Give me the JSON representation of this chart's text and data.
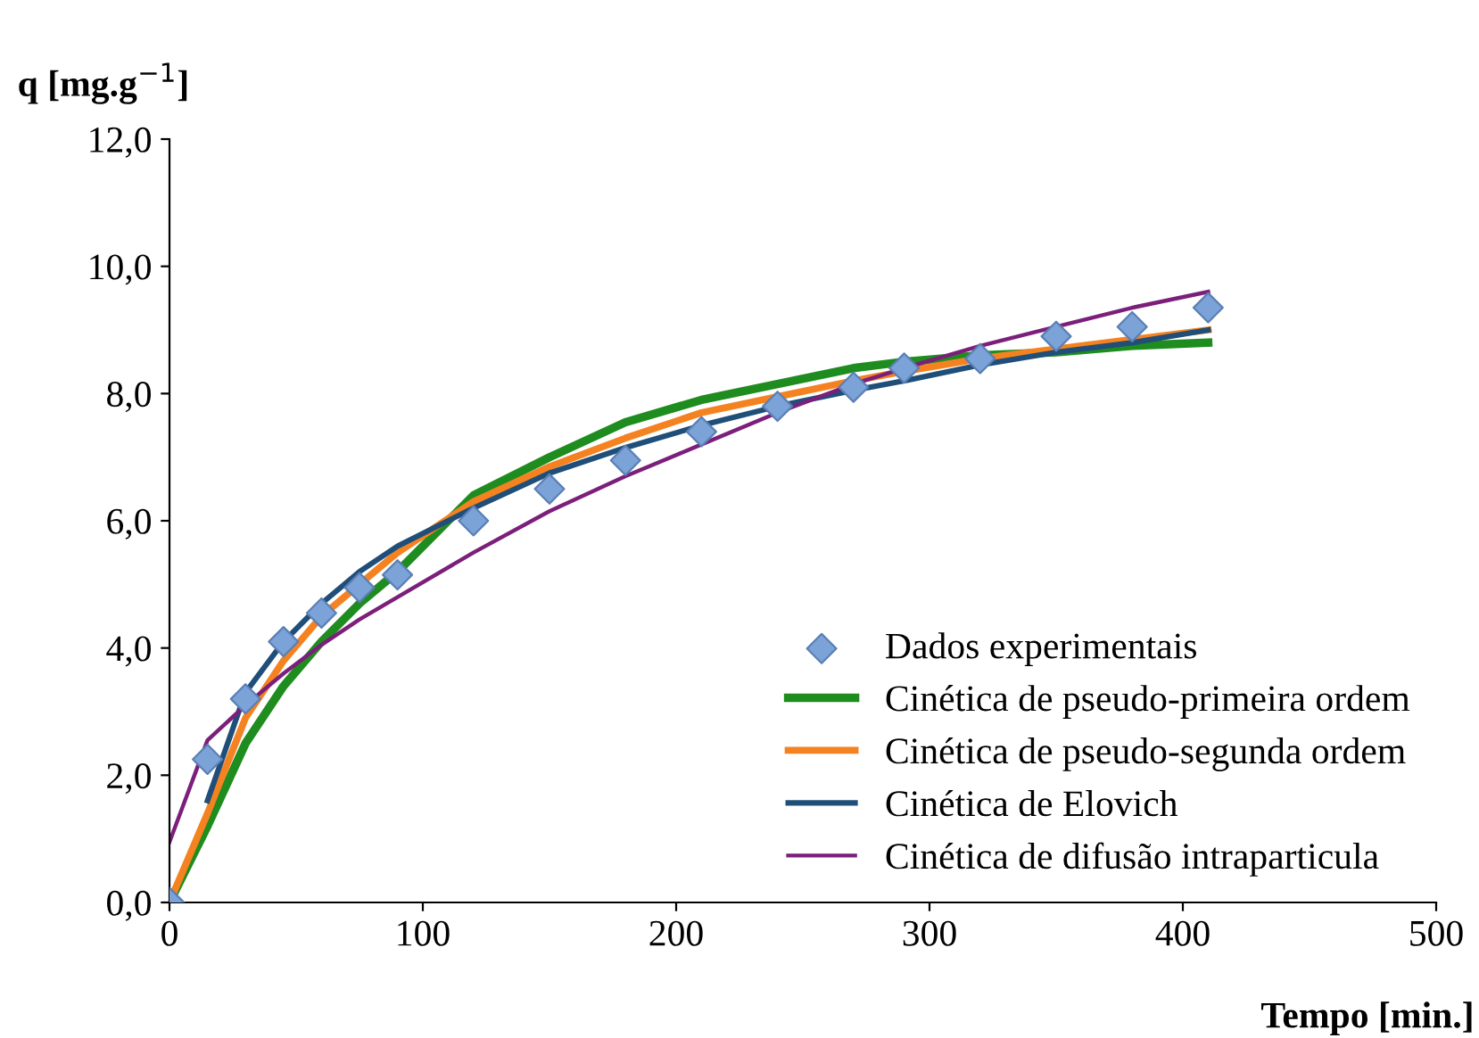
{
  "chart_data": {
    "type": "line",
    "xlabel": "Tempo [min.]",
    "ylabel": "q [mg.g$^{−1}$]",
    "xlim": [
      0,
      500
    ],
    "xticks": [
      0,
      100,
      200,
      300,
      400,
      500
    ],
    "ylim": [
      0,
      12
    ],
    "yticks": [
      {
        "value": 0,
        "label": "0,0"
      },
      {
        "value": 2,
        "label": "2,0"
      },
      {
        "value": 4,
        "label": "4,0"
      },
      {
        "value": 6,
        "label": "6,0"
      },
      {
        "value": 8,
        "label": "8,0"
      },
      {
        "value": 10,
        "label": "10,0"
      },
      {
        "value": 12,
        "label": "12,0"
      }
    ],
    "grid": false,
    "legend": "bottom right",
    "series": [
      {
        "name": "Dados experimentais",
        "type": "scatter",
        "marker": "diamond",
        "color": "#7ba3d8",
        "x": [
          0,
          15,
          30,
          45,
          60,
          75,
          90,
          120,
          150,
          180,
          210,
          240,
          270,
          290,
          320,
          350,
          380,
          410
        ],
        "values": [
          0,
          2.25,
          3.2,
          4.1,
          4.55,
          4.95,
          5.15,
          6.0,
          6.5,
          6.95,
          7.4,
          7.8,
          8.1,
          8.4,
          8.55,
          8.9,
          9.05,
          9.35
        ]
      },
      {
        "name": "Cinética de pseudo-primeira ordem",
        "color": "#1e8c1e",
        "x": [
          0,
          15,
          30,
          45,
          60,
          75,
          90,
          120,
          150,
          180,
          210,
          240,
          270,
          290,
          320,
          350,
          380,
          410
        ],
        "values": [
          0,
          1.2,
          2.5,
          3.4,
          4.1,
          4.7,
          5.2,
          6.4,
          7.0,
          7.55,
          7.9,
          8.15,
          8.4,
          8.5,
          8.6,
          8.65,
          8.75,
          8.8
        ]
      },
      {
        "name": "Cinética de pseudo-segunda ordem",
        "color": "#f58220",
        "x": [
          0,
          15,
          30,
          45,
          60,
          75,
          90,
          120,
          150,
          180,
          210,
          240,
          270,
          290,
          320,
          350,
          380,
          410
        ],
        "values": [
          0,
          1.4,
          2.9,
          3.8,
          4.5,
          5.0,
          5.5,
          6.3,
          6.85,
          7.3,
          7.7,
          7.95,
          8.2,
          8.35,
          8.55,
          8.7,
          8.85,
          9.0
        ]
      },
      {
        "name": "Cinética de Elovich",
        "color": "#1f4e79",
        "x": [
          15,
          30,
          45,
          60,
          75,
          90,
          120,
          150,
          180,
          210,
          240,
          270,
          290,
          320,
          350,
          380,
          410
        ],
        "values": [
          1.6,
          3.3,
          4.1,
          4.7,
          5.2,
          5.6,
          6.2,
          6.75,
          7.15,
          7.5,
          7.8,
          8.05,
          8.2,
          8.45,
          8.65,
          8.8,
          9.0
        ]
      },
      {
        "name": "Cinética de difusão intraparticula",
        "color": "#7b1f7b",
        "x": [
          0,
          15,
          30,
          45,
          60,
          75,
          90,
          120,
          150,
          180,
          210,
          240,
          270,
          290,
          320,
          350,
          380,
          410
        ],
        "values": [
          0.95,
          2.55,
          3.1,
          3.6,
          4.05,
          4.45,
          4.8,
          5.5,
          6.15,
          6.7,
          7.2,
          7.7,
          8.15,
          8.4,
          8.75,
          9.05,
          9.35,
          9.6
        ]
      }
    ]
  }
}
